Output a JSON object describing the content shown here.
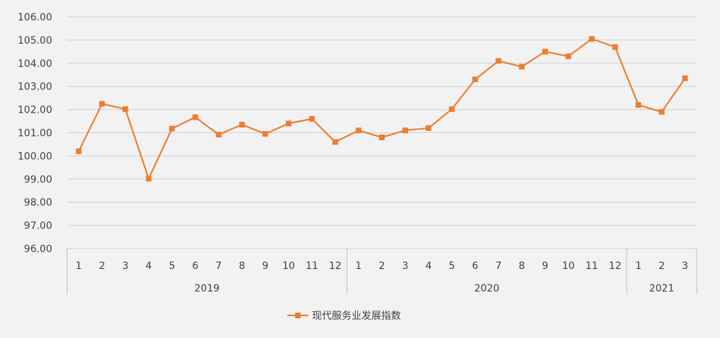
{
  "chart_data": {
    "type": "line",
    "title": "",
    "xlabel": "",
    "ylabel": "",
    "ylim": [
      96,
      106
    ],
    "y_ticks": [
      "96.00",
      "97.00",
      "98.00",
      "99.00",
      "100.00",
      "101.00",
      "102.00",
      "103.00",
      "104.00",
      "105.00",
      "106.00"
    ],
    "groups": [
      {
        "label": "2019",
        "months": [
          "1",
          "2",
          "3",
          "4",
          "5",
          "6",
          "7",
          "8",
          "9",
          "10",
          "11",
          "12"
        ]
      },
      {
        "label": "2020",
        "months": [
          "1",
          "2",
          "3",
          "4",
          "5",
          "6",
          "7",
          "8",
          "9",
          "10",
          "11",
          "12"
        ]
      },
      {
        "label": "2021",
        "months": [
          "1",
          "2",
          "3"
        ]
      }
    ],
    "series": [
      {
        "name": "现代服务业发展指数",
        "color": "#ed7d31",
        "values": [
          100.2,
          102.25,
          102.02,
          99.02,
          101.18,
          101.67,
          100.92,
          101.35,
          100.95,
          101.4,
          101.6,
          100.6,
          101.1,
          100.8,
          101.1,
          101.2,
          102.02,
          103.3,
          104.1,
          103.85,
          104.5,
          104.3,
          105.05,
          104.7,
          102.2,
          101.9,
          103.35
        ]
      }
    ],
    "grid": true,
    "legend_position": "bottom"
  }
}
